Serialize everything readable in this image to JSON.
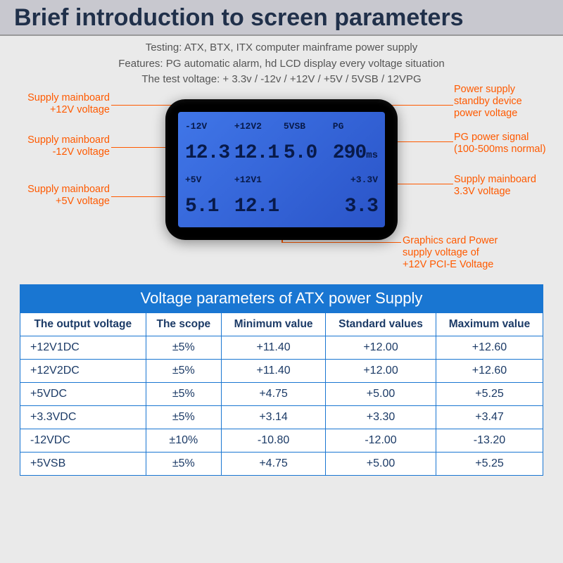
{
  "header": {
    "title": "Brief introduction to screen parameters"
  },
  "intro": {
    "line1": "Testing: ATX, BTX, ITX computer mainframe power supply",
    "line2": "Features: PG automatic alarm, hd LCD display every voltage situation",
    "line3": "The test voltage: + 3.3v / -12v / +12V / +5V / 5VSB / 12VPG"
  },
  "lcd": {
    "background_gradient": [
      "#4076e8",
      "#2a54c8"
    ],
    "text_color": "#081a4a",
    "font": "Courier New",
    "readings": {
      "neg12v": {
        "label": "-12V",
        "value": "12.3"
      },
      "p12v2": {
        "label": "+12V2",
        "value": "12.1"
      },
      "sb5v": {
        "label": "5VSB",
        "value": "5.0"
      },
      "pg": {
        "label": "PG",
        "value": "290",
        "unit": "ms"
      },
      "p5v": {
        "label": "+5V",
        "value": "5.1"
      },
      "p12v1": {
        "label": "+12V1",
        "value": "12.1"
      },
      "p3v3": {
        "label": "+3.3V",
        "value": "3.3"
      }
    }
  },
  "callouts": {
    "color": "#ff5a00",
    "left": [
      {
        "text1": "Supply mainboard",
        "text2": "+12V voltage"
      },
      {
        "text1": "Supply mainboard",
        "text2": "-12V voltage"
      },
      {
        "text1": "Supply mainboard",
        "text2": "+5V voltage"
      }
    ],
    "right": [
      {
        "text1": "Power supply",
        "text2": "standby device",
        "text3": "power voltage"
      },
      {
        "text1": "PG power signal",
        "text2": "(100-500ms normal)"
      },
      {
        "text1": "Supply mainboard",
        "text2": "3.3V voltage"
      },
      {
        "text1": "Graphics card Power",
        "text2": "supply voltage of",
        "text3": "+12V PCI-E Voltage"
      }
    ]
  },
  "table": {
    "caption": "Voltage parameters of ATX power Supply",
    "border_color": "#1976d2",
    "header_bg": "#1976d2",
    "text_color": "#1b3a66",
    "columns": [
      "The output voltage",
      "The scope",
      "Minimum value",
      "Standard values",
      "Maximum value"
    ],
    "rows": [
      [
        "+12V1DC",
        "±5%",
        "+11.40",
        "+12.00",
        "+12.60"
      ],
      [
        "+12V2DC",
        "±5%",
        "+11.40",
        "+12.00",
        "+12.60"
      ],
      [
        "+5VDC",
        "±5%",
        "+4.75",
        "+5.00",
        "+5.25"
      ],
      [
        "+3.3VDC",
        "±5%",
        "+3.14",
        "+3.30",
        "+3.47"
      ],
      [
        "-12VDC",
        "±10%",
        "-10.80",
        "-12.00",
        "-13.20"
      ],
      [
        "+5VSB",
        "±5%",
        "+4.75",
        "+5.00",
        "+5.25"
      ]
    ]
  }
}
